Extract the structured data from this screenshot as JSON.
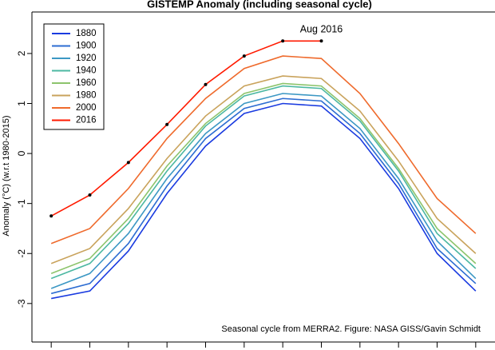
{
  "chart_data": {
    "type": "line",
    "title": "GISTEMP Anomaly (including seasonal cycle)",
    "y_label": "Anomaly (°C) (w.r.t 1980-2015)",
    "annotations": [
      "Aug 2016",
      "Seasonal cycle from MERRA2. Figure: NASA GISS/Gavin Schmidt"
    ],
    "categories": [
      null,
      null,
      null,
      null,
      null,
      null,
      null,
      null,
      null,
      null,
      null,
      null
    ],
    "ylim": [
      -3.77,
      2.83
    ],
    "yticks": [
      -3,
      -2,
      -1,
      0,
      1,
      2
    ],
    "legend": "top-left",
    "series": [
      {
        "name": "1880",
        "color": "#1a3be0",
        "values": [
          -2.9,
          -2.75,
          -1.95,
          -0.8,
          0.15,
          0.8,
          1.0,
          0.95,
          0.3,
          -0.7,
          -2.0,
          -2.75
        ]
      },
      {
        "name": "1900",
        "color": "#2c6cd2",
        "values": [
          -2.8,
          -2.6,
          -1.8,
          -0.65,
          0.3,
          0.9,
          1.1,
          1.05,
          0.4,
          -0.6,
          -1.9,
          -2.6
        ]
      },
      {
        "name": "1920",
        "color": "#3c98c4",
        "values": [
          -2.7,
          -2.4,
          -1.6,
          -0.5,
          0.4,
          1.0,
          1.2,
          1.15,
          0.5,
          -0.5,
          -1.75,
          -2.5
        ]
      },
      {
        "name": "1940",
        "color": "#4cb8a2",
        "values": [
          -2.5,
          -2.2,
          -1.4,
          -0.35,
          0.55,
          1.15,
          1.35,
          1.3,
          0.65,
          -0.35,
          -1.6,
          -2.3
        ]
      },
      {
        "name": "1960",
        "color": "#8dc46c",
        "values": [
          -2.4,
          -2.1,
          -1.3,
          -0.25,
          0.6,
          1.2,
          1.4,
          1.35,
          0.7,
          -0.3,
          -1.5,
          -2.2
        ]
      },
      {
        "name": "1980",
        "color": "#c9a35c",
        "values": [
          -2.2,
          -1.9,
          -1.1,
          -0.1,
          0.75,
          1.35,
          1.55,
          1.5,
          0.85,
          -0.15,
          -1.3,
          -2.0
        ]
      },
      {
        "name": "2000",
        "color": "#ef6a2c",
        "values": [
          -1.8,
          -1.5,
          -0.7,
          0.3,
          1.1,
          1.7,
          1.95,
          1.9,
          1.2,
          0.2,
          -0.9,
          -1.6
        ]
      },
      {
        "name": "2016",
        "color": "#ff1a00",
        "markers": true,
        "values": [
          -1.25,
          -0.83,
          -0.18,
          0.58,
          1.38,
          1.95,
          2.25,
          2.25,
          null,
          null,
          null,
          null
        ]
      }
    ]
  }
}
